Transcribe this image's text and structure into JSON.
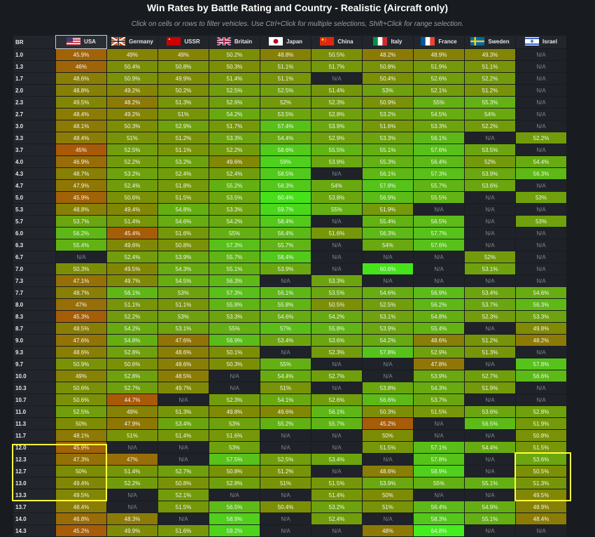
{
  "title": "Win Rates by Battle Rating and Country - Realistic (Aircraft only)",
  "subtitle": "Click on cells or rows to filter vehicles. Use Ctrl+Click for multiple selections, Shift+Click for range selection.",
  "br_header": "BR",
  "countries": [
    {
      "name": "USA",
      "flag": "usa-flag-icon",
      "selected": true
    },
    {
      "name": "Germany",
      "flag": "germany-flag-icon"
    },
    {
      "name": "USSR",
      "flag": "ussr-flag-icon"
    },
    {
      "name": "Britain",
      "flag": "britain-flag-icon"
    },
    {
      "name": "Japan",
      "flag": "japan-flag-icon"
    },
    {
      "name": "China",
      "flag": "china-flag-icon"
    },
    {
      "name": "Italy",
      "flag": "italy-flag-icon"
    },
    {
      "name": "France",
      "flag": "france-flag-icon"
    },
    {
      "name": "Sweden",
      "flag": "sweden-flag-icon"
    },
    {
      "name": "Israel",
      "flag": "israel-flag-icon"
    }
  ],
  "colors": {
    "highlight": "#ffff3c",
    "low": "#a85a08",
    "mid": "#7d8c05",
    "high": "#55c41b",
    "na": "#1f2329"
  },
  "rows": [
    {
      "br": "1.0",
      "values": [
        "45.9%",
        "49%",
        "49%",
        "50.2%",
        "48.8%",
        "50.5%",
        "48.2%",
        "48.9%",
        "49.3%",
        "N/A"
      ]
    },
    {
      "br": "1.3",
      "values": [
        "46%",
        "50.4%",
        "50.8%",
        "50.3%",
        "51.1%",
        "51.7%",
        "50.8%",
        "51.9%",
        "51.1%",
        "N/A"
      ]
    },
    {
      "br": "1.7",
      "values": [
        "48.6%",
        "50.9%",
        "49.9%",
        "51.4%",
        "51.1%",
        "N/A",
        "50.4%",
        "52.6%",
        "52.2%",
        "N/A"
      ]
    },
    {
      "br": "2.0",
      "values": [
        "48.8%",
        "49.2%",
        "50.2%",
        "52.5%",
        "52.5%",
        "51.4%",
        "53%",
        "52.1%",
        "51.2%",
        "N/A"
      ]
    },
    {
      "br": "2.3",
      "values": [
        "49.5%",
        "48.2%",
        "51.3%",
        "52.6%",
        "52%",
        "52.3%",
        "50.9%",
        "55%",
        "55.3%",
        "N/A"
      ]
    },
    {
      "br": "2.7",
      "values": [
        "48.4%",
        "49.2%",
        "51%",
        "54.2%",
        "53.5%",
        "52.8%",
        "53.2%",
        "54.5%",
        "54%",
        "N/A"
      ]
    },
    {
      "br": "3.0",
      "values": [
        "48.1%",
        "50.3%",
        "52.9%",
        "51.7%",
        "57.4%",
        "53.9%",
        "51.6%",
        "53.3%",
        "52.2%",
        "N/A"
      ]
    },
    {
      "br": "3.3",
      "values": [
        "48.4%",
        "51%",
        "51.2%",
        "53.3%",
        "54.4%",
        "52.9%",
        "53.3%",
        "56.1%",
        "N/A",
        "52.2%"
      ]
    },
    {
      "br": "3.7",
      "values": [
        "45%",
        "52.5%",
        "51.1%",
        "52.2%",
        "58.6%",
        "55.5%",
        "55.1%",
        "57.6%",
        "53.5%",
        "N/A"
      ]
    },
    {
      "br": "4.0",
      "values": [
        "46.9%",
        "52.2%",
        "53.2%",
        "49.6%",
        "59%",
        "53.9%",
        "55.3%",
        "56.4%",
        "52%",
        "54.4%"
      ]
    },
    {
      "br": "4.3",
      "values": [
        "48.7%",
        "53.2%",
        "52.4%",
        "52.4%",
        "58.5%",
        "N/A",
        "56.1%",
        "57.3%",
        "53.9%",
        "56.3%"
      ]
    },
    {
      "br": "4.7",
      "values": [
        "47.9%",
        "52.4%",
        "51.8%",
        "55.2%",
        "58.3%",
        "54%",
        "57.8%",
        "55.7%",
        "53.6%",
        "N/A"
      ]
    },
    {
      "br": "5.0",
      "values": [
        "45.9%",
        "50.6%",
        "51.5%",
        "53.5%",
        "60.4%",
        "53.8%",
        "56.9%",
        "55.5%",
        "N/A",
        "53%"
      ]
    },
    {
      "br": "5.3",
      "values": [
        "48.8%",
        "49.4%",
        "54.8%",
        "53.3%",
        "59.7%",
        "55%",
        "51.9%",
        "N/A",
        "N/A",
        "N/A"
      ]
    },
    {
      "br": "5.7",
      "values": [
        "53.7%",
        "51.4%",
        "54.6%",
        "54.2%",
        "58.4%",
        "N/A",
        "55.4%",
        "56.5%",
        "N/A",
        "53%"
      ]
    },
    {
      "br": "6.0",
      "values": [
        "56.2%",
        "45.4%",
        "51.6%",
        "55%",
        "56.4%",
        "51.6%",
        "56.3%",
        "57.7%",
        "N/A",
        "N/A"
      ]
    },
    {
      "br": "6.3",
      "values": [
        "55.4%",
        "49.6%",
        "50.8%",
        "57.3%",
        "55.7%",
        "N/A",
        "54%",
        "57.6%",
        "N/A",
        "N/A"
      ]
    },
    {
      "br": "6.7",
      "values": [
        "N/A",
        "52.4%",
        "53.9%",
        "55.7%",
        "58.4%",
        "N/A",
        "N/A",
        "N/A",
        "52%",
        "N/A"
      ]
    },
    {
      "br": "7.0",
      "values": [
        "50.3%",
        "49.5%",
        "54.3%",
        "55.1%",
        "53.9%",
        "N/A",
        "60.6%",
        "N/A",
        "53.1%",
        "N/A"
      ]
    },
    {
      "br": "7.3",
      "values": [
        "47.1%",
        "49.7%",
        "54.5%",
        "56.3%",
        "N/A",
        "53.3%",
        "N/A",
        "N/A",
        "N/A",
        "N/A"
      ]
    },
    {
      "br": "7.7",
      "values": [
        "48.7%",
        "56.1%",
        "53%",
        "57.3%",
        "56.1%",
        "53.5%",
        "54.6%",
        "56.9%",
        "53.4%",
        "54.6%"
      ]
    },
    {
      "br": "8.0",
      "values": [
        "47%",
        "51.1%",
        "51.1%",
        "55.8%",
        "55.8%",
        "50.5%",
        "52.5%",
        "56.2%",
        "53.7%",
        "56.3%"
      ]
    },
    {
      "br": "8.3",
      "values": [
        "45.3%",
        "52.2%",
        "53%",
        "53.3%",
        "54.6%",
        "54.2%",
        "53.1%",
        "54.8%",
        "52.3%",
        "53.3%"
      ]
    },
    {
      "br": "8.7",
      "values": [
        "48.5%",
        "54.2%",
        "53.1%",
        "55%",
        "57%",
        "55.8%",
        "53.9%",
        "55.4%",
        "N/A",
        "49.8%"
      ]
    },
    {
      "br": "9.0",
      "values": [
        "47.6%",
        "54.8%",
        "47.6%",
        "56.9%",
        "53.4%",
        "53.6%",
        "54.2%",
        "48.6%",
        "51.2%",
        "48.2%"
      ]
    },
    {
      "br": "9.3",
      "values": [
        "48.6%",
        "52.8%",
        "48.6%",
        "50.1%",
        "N/A",
        "52.3%",
        "57.8%",
        "52.9%",
        "51.3%",
        "N/A"
      ]
    },
    {
      "br": "9.7",
      "values": [
        "50.9%",
        "50.6%",
        "48.6%",
        "50.3%",
        "55%",
        "N/A",
        "N/A",
        "47.8%",
        "N/A",
        "57.8%"
      ]
    },
    {
      "br": "10.0",
      "values": [
        "49%",
        "52.8%",
        "48.5%",
        "N/A",
        "54.4%",
        "52.7%",
        "N/A",
        "53.9%",
        "52.7%",
        "56.6%"
      ]
    },
    {
      "br": "10.3",
      "values": [
        "50.6%",
        "52.7%",
        "49.7%",
        "N/A",
        "51%",
        "N/A",
        "53.8%",
        "54.3%",
        "51.9%",
        "N/A"
      ]
    },
    {
      "br": "10.7",
      "values": [
        "50.6%",
        "44.7%",
        "N/A",
        "52.3%",
        "54.1%",
        "52.6%",
        "56.6%",
        "53.7%",
        "N/A",
        "N/A"
      ]
    },
    {
      "br": "11.0",
      "values": [
        "52.5%",
        "49%",
        "51.3%",
        "49.8%",
        "49.6%",
        "56.1%",
        "50.3%",
        "51.5%",
        "53.6%",
        "52.8%"
      ]
    },
    {
      "br": "11.3",
      "values": [
        "50%",
        "47.9%",
        "53.4%",
        "53%",
        "55.2%",
        "55.7%",
        "45.2%",
        "N/A",
        "56.5%",
        "51.9%"
      ]
    },
    {
      "br": "11.7",
      "values": [
        "48.1%",
        "51%",
        "51.4%",
        "51.6%",
        "N/A",
        "N/A",
        "50%",
        "N/A",
        "N/A",
        "50.8%"
      ]
    },
    {
      "br": "12.0",
      "values": [
        "45.9%",
        "N/A",
        "N/A",
        "53%",
        "N/A",
        "N/A",
        "51.5%",
        "57.1%",
        "54.4%",
        "51.5%"
      ]
    },
    {
      "br": "12.3",
      "values": [
        "47.3%",
        "47%",
        "N/A",
        "57.5%",
        "52.5%",
        "53.4%",
        "N/A",
        "57.8%",
        "N/A",
        "53.6%"
      ]
    },
    {
      "br": "12.7",
      "values": [
        "50%",
        "51.4%",
        "52.7%",
        "50.8%",
        "51.2%",
        "N/A",
        "48.6%",
        "58.9%",
        "N/A",
        "50.5%"
      ]
    },
    {
      "br": "13.0",
      "values": [
        "49.4%",
        "52.2%",
        "50.8%",
        "52.8%",
        "51%",
        "51.5%",
        "53.9%",
        "55%",
        "55.1%",
        "51.3%"
      ]
    },
    {
      "br": "13.3",
      "values": [
        "49.5%",
        "N/A",
        "52.1%",
        "N/A",
        "N/A",
        "51.4%",
        "50%",
        "N/A",
        "N/A",
        "49.5%"
      ]
    },
    {
      "br": "13.7",
      "values": [
        "48.4%",
        "N/A",
        "51.5%",
        "56.5%",
        "50.4%",
        "53.2%",
        "51%",
        "56.4%",
        "54.9%",
        "48.9%"
      ]
    },
    {
      "br": "14.0",
      "values": [
        "46.8%",
        "48.3%",
        "N/A",
        "58.9%",
        "N/A",
        "52.4%",
        "N/A",
        "58.3%",
        "55.1%",
        "48.4%"
      ]
    },
    {
      "br": "14.3",
      "values": [
        "45.2%",
        "49.9%",
        "51.6%",
        "59.2%",
        "N/A",
        "N/A",
        "48%",
        "64.8%",
        "N/A",
        "N/A"
      ]
    }
  ]
}
